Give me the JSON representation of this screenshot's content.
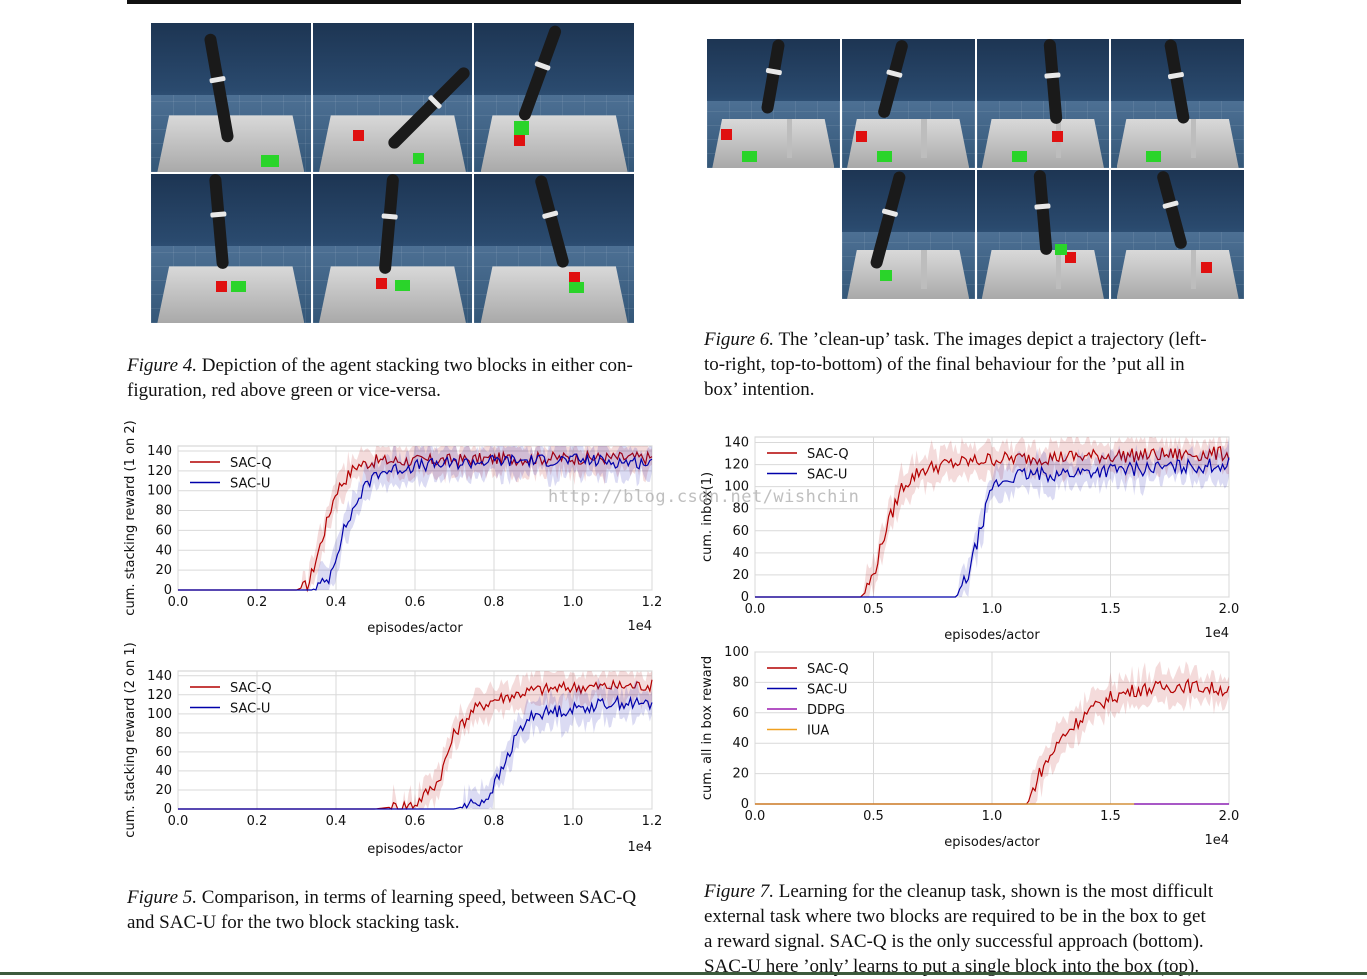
{
  "figure4": {
    "label": "Figure 4.",
    "text": "Depiction of the agent stacking two blocks in either con-figuration, red above green or vice-versa.",
    "text_line1": "Depiction of the agent stacking two blocks in either con-",
    "text_line2": "figuration, red above green or vice-versa."
  },
  "figure6": {
    "label": "Figure 6.",
    "line1": "The ’clean-up’ task. The images depict a trajectory (left-",
    "line2": "to-right, top-to-bottom) of the final behaviour for the ’put all in",
    "line3": "box’ intention."
  },
  "figure5": {
    "label": "Figure 5.",
    "line1": "Comparison, in terms of learning speed, between SAC-Q",
    "line2": "and SAC-U for the two block stacking task."
  },
  "figure7": {
    "label": "Figure 7.",
    "line1": "Learning for the cleanup task, shown is the most difficult",
    "line2": "external task where two blocks are required to be in the box to get",
    "line3": "a reward signal. SAC-Q is the only successful approach (bottom).",
    "line4": "SAC-U here ’only’ learns to put a single block into the box (top)."
  },
  "watermark": "http://blog.csdn.net/wishchin",
  "colors": {
    "sac_q": "#b30000",
    "sac_u": "#0000aa",
    "ddpg": "#9b1bb0",
    "iua": "#f0a020"
  },
  "chart_data": [
    {
      "type": "line",
      "ylabel": "cum. stacking reward (1 on 2)",
      "xlabel": "episodes/actor",
      "x_multiplier": "1e4",
      "xlim": [
        0,
        1.2
      ],
      "ylim": [
        0,
        145
      ],
      "xticks": [
        "0.0",
        "0.2",
        "0.4",
        "0.6",
        "0.8",
        "1.0",
        "1.2"
      ],
      "yticks": [
        "0",
        "20",
        "40",
        "60",
        "80",
        "100",
        "120",
        "140"
      ],
      "legend": "top-left",
      "grid": true,
      "series": [
        {
          "name": "SAC-Q",
          "x": [
            0,
            0.3,
            0.33,
            0.36,
            0.4,
            0.45,
            0.5,
            0.6,
            0.8,
            1.0,
            1.2
          ],
          "values": [
            0,
            0,
            5,
            45,
            100,
            125,
            130,
            130,
            132,
            133,
            133
          ]
        },
        {
          "name": "SAC-U",
          "x": [
            0,
            0.34,
            0.38,
            0.42,
            0.46,
            0.5,
            0.6,
            0.8,
            1.0,
            1.2
          ],
          "values": [
            0,
            0,
            10,
            60,
            95,
            118,
            125,
            130,
            131,
            128
          ]
        }
      ]
    },
    {
      "type": "line",
      "ylabel": "cum. stacking reward (2 on 1)",
      "xlabel": "episodes/actor",
      "x_multiplier": "1e4",
      "xlim": [
        0,
        1.2
      ],
      "ylim": [
        0,
        145
      ],
      "xticks": [
        "0.0",
        "0.2",
        "0.4",
        "0.6",
        "0.8",
        "1.0",
        "1.2"
      ],
      "yticks": [
        "0",
        "20",
        "40",
        "60",
        "80",
        "100",
        "120",
        "140"
      ],
      "legend": "top-left",
      "grid": true,
      "series": [
        {
          "name": "SAC-Q",
          "x": [
            0,
            0.5,
            0.6,
            0.66,
            0.7,
            0.75,
            0.8,
            0.9,
            1.0,
            1.2
          ],
          "values": [
            0,
            0,
            5,
            30,
            80,
            105,
            115,
            125,
            128,
            130
          ]
        },
        {
          "name": "SAC-U",
          "x": [
            0,
            0.7,
            0.78,
            0.82,
            0.86,
            0.9,
            1.0,
            1.1,
            1.2
          ],
          "values": [
            0,
            0,
            10,
            40,
            80,
            100,
            105,
            112,
            110
          ]
        }
      ]
    },
    {
      "type": "line",
      "ylabel": "cum. inbox(1)",
      "xlabel": "episodes/actor",
      "x_multiplier": "1e4",
      "xlim": [
        0,
        2.0
      ],
      "ylim": [
        0,
        145
      ],
      "xticks": [
        "0.0",
        "0.5",
        "1.0",
        "1.5",
        "2.0"
      ],
      "yticks": [
        "0",
        "20",
        "40",
        "60",
        "80",
        "100",
        "120",
        "140"
      ],
      "legend": "top-left",
      "grid": true,
      "series": [
        {
          "name": "SAC-Q",
          "x": [
            0,
            0.45,
            0.5,
            0.55,
            0.62,
            0.7,
            0.8,
            1.0,
            1.5,
            2.0
          ],
          "values": [
            0,
            0,
            20,
            60,
            100,
            115,
            120,
            125,
            128,
            130
          ]
        },
        {
          "name": "SAC-U",
          "x": [
            0,
            0.85,
            0.9,
            0.95,
            1.0,
            1.1,
            1.3,
            1.5,
            2.0
          ],
          "values": [
            0,
            0,
            20,
            60,
            100,
            110,
            112,
            115,
            120
          ]
        }
      ]
    },
    {
      "type": "line",
      "ylabel": "cum. all in box reward",
      "xlabel": "episodes/actor",
      "x_multiplier": "1e4",
      "xlim": [
        0,
        2.0
      ],
      "ylim": [
        0,
        100
      ],
      "xticks": [
        "0.0",
        "0.5",
        "1.0",
        "1.5",
        "2.0"
      ],
      "yticks": [
        "0",
        "20",
        "40",
        "60",
        "80",
        "100"
      ],
      "legend": "top-left",
      "grid": true,
      "series": [
        {
          "name": "SAC-Q",
          "x": [
            0,
            1.15,
            1.2,
            1.3,
            1.4,
            1.5,
            1.6,
            1.8,
            2.0
          ],
          "values": [
            0,
            0,
            20,
            45,
            60,
            70,
            75,
            78,
            75
          ]
        },
        {
          "name": "SAC-U",
          "x": [
            0,
            2.0
          ],
          "values": [
            0,
            0
          ]
        },
        {
          "name": "DDPG",
          "x": [
            1.6,
            2.0
          ],
          "values": [
            0,
            0
          ]
        },
        {
          "name": "IUA",
          "x": [
            0,
            1.6
          ],
          "values": [
            0,
            0
          ]
        }
      ]
    }
  ]
}
